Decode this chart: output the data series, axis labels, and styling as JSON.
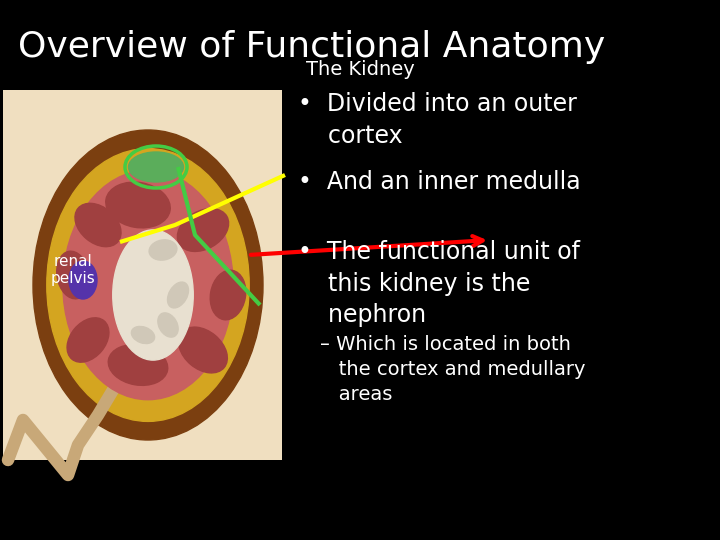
{
  "background_color": "#000000",
  "title": "Overview of Functional Anatomy",
  "subtitle": "The Kidney",
  "title_color": "#ffffff",
  "subtitle_color": "#ffffff",
  "title_fontsize": 26,
  "subtitle_fontsize": 14,
  "bullet_fontsize": 17,
  "sub_bullet_fontsize": 14,
  "bullet_color": "#ffffff",
  "image_bg_color": "#f0dfc0",
  "image_label": "renal\npelvis",
  "image_label_color": "#ffffff",
  "image_label_fontsize": 11
}
